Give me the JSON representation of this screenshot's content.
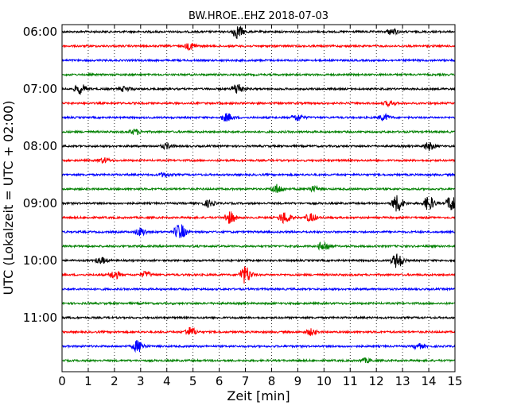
{
  "chart_data": {
    "type": "line",
    "title": "BW.HROE..EHZ 2018-07-03",
    "xlabel": "Zeit  [min]",
    "ylabel": "UTC (Lokalzeit = UTC + 02:00)",
    "xlim": [
      0,
      15
    ],
    "xticks": [
      0,
      1,
      2,
      3,
      4,
      5,
      6,
      7,
      8,
      9,
      10,
      11,
      12,
      13,
      14,
      15
    ],
    "yticks": [
      {
        "label": "06:00",
        "trace": 0
      },
      {
        "label": "07:00",
        "trace": 4
      },
      {
        "label": "08:00",
        "trace": 8
      },
      {
        "label": "09:00",
        "trace": 12
      },
      {
        "label": "10:00",
        "trace": 16
      },
      {
        "label": "11:00",
        "trace": 20
      }
    ],
    "grid": {
      "vertical": true,
      "style": "dotted"
    },
    "trace_colors": [
      "#000000",
      "#ff0000",
      "#0000ff",
      "#008000"
    ],
    "traces": [
      {
        "start": "06:00",
        "events": [
          {
            "t": 6.7,
            "amp": 1.3
          },
          {
            "t": 12.6,
            "amp": 0.6
          }
        ]
      },
      {
        "start": "06:15",
        "events": [
          {
            "t": 4.9,
            "amp": 0.7
          }
        ]
      },
      {
        "start": "06:30",
        "events": []
      },
      {
        "start": "06:45",
        "events": []
      },
      {
        "start": "07:00",
        "events": [
          {
            "t": 0.7,
            "amp": 1.0
          },
          {
            "t": 6.7,
            "amp": 1.1
          },
          {
            "t": 2.4,
            "amp": 0.5
          }
        ]
      },
      {
        "start": "07:15",
        "events": [
          {
            "t": 12.5,
            "amp": 0.5
          }
        ]
      },
      {
        "start": "07:30",
        "events": [
          {
            "t": 6.3,
            "amp": 0.8
          },
          {
            "t": 9.0,
            "amp": 0.7
          },
          {
            "t": 12.3,
            "amp": 0.6
          }
        ]
      },
      {
        "start": "07:45",
        "events": [
          {
            "t": 2.8,
            "amp": 0.5
          }
        ]
      },
      {
        "start": "08:00",
        "events": [
          {
            "t": 4.0,
            "amp": 0.5
          },
          {
            "t": 14.0,
            "amp": 0.8
          }
        ]
      },
      {
        "start": "08:15",
        "events": [
          {
            "t": 1.6,
            "amp": 0.5
          }
        ]
      },
      {
        "start": "08:30",
        "events": [
          {
            "t": 3.9,
            "amp": 0.4
          }
        ]
      },
      {
        "start": "08:45",
        "events": [
          {
            "t": 8.2,
            "amp": 0.9
          },
          {
            "t": 9.6,
            "amp": 0.5
          }
        ]
      },
      {
        "start": "09:00",
        "events": [
          {
            "t": 12.8,
            "amp": 1.7
          },
          {
            "t": 14.0,
            "amp": 1.4
          },
          {
            "t": 14.9,
            "amp": 1.8
          },
          {
            "t": 5.6,
            "amp": 0.6
          }
        ]
      },
      {
        "start": "09:15",
        "events": [
          {
            "t": 6.4,
            "amp": 1.2
          },
          {
            "t": 8.5,
            "amp": 1.2
          },
          {
            "t": 9.5,
            "amp": 0.8
          }
        ]
      },
      {
        "start": "09:30",
        "events": [
          {
            "t": 3.0,
            "amp": 0.8
          },
          {
            "t": 4.5,
            "amp": 1.6
          }
        ]
      },
      {
        "start": "09:45",
        "events": [
          {
            "t": 10.0,
            "amp": 1.1
          }
        ]
      },
      {
        "start": "10:00",
        "events": [
          {
            "t": 1.5,
            "amp": 0.6
          },
          {
            "t": 12.8,
            "amp": 1.5
          }
        ]
      },
      {
        "start": "10:15",
        "events": [
          {
            "t": 2.0,
            "amp": 0.8
          },
          {
            "t": 3.2,
            "amp": 0.6
          },
          {
            "t": 7.0,
            "amp": 1.8
          }
        ]
      },
      {
        "start": "10:30",
        "events": []
      },
      {
        "start": "10:45",
        "events": []
      },
      {
        "start": "11:00",
        "events": []
      },
      {
        "start": "11:15",
        "events": [
          {
            "t": 4.9,
            "amp": 0.9
          },
          {
            "t": 9.5,
            "amp": 0.6
          }
        ]
      },
      {
        "start": "11:30",
        "events": [
          {
            "t": 2.9,
            "amp": 1.2
          },
          {
            "t": 13.6,
            "amp": 0.5
          }
        ]
      },
      {
        "start": "11:45",
        "events": [
          {
            "t": 11.6,
            "amp": 0.4
          }
        ]
      }
    ]
  }
}
